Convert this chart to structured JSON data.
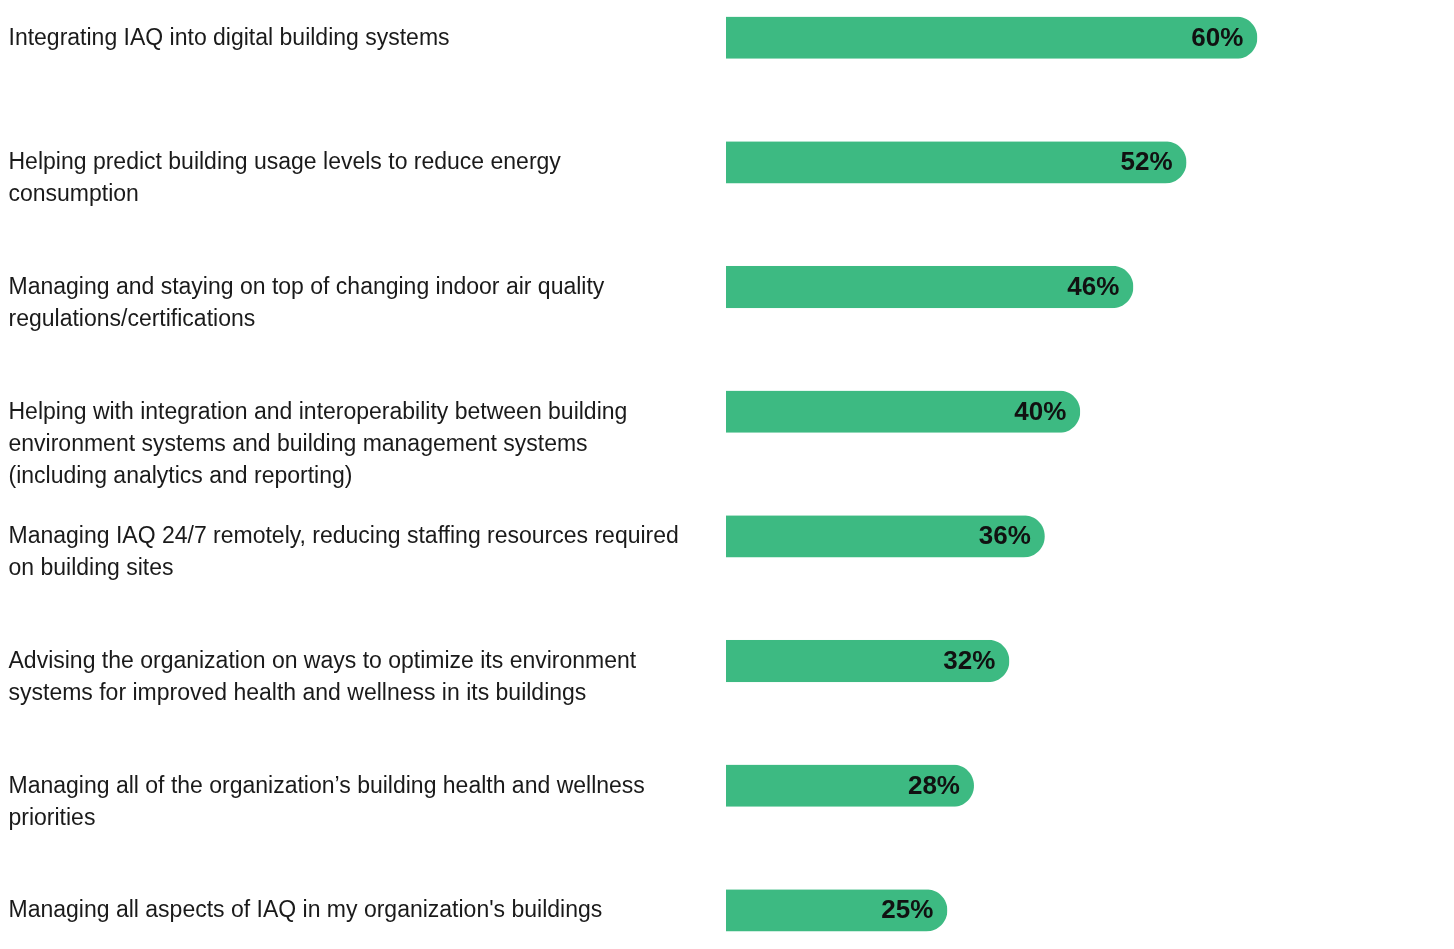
{
  "chart_data": {
    "type": "bar",
    "orientation": "horizontal",
    "categories": [
      "Integrating IAQ into digital building systems",
      "Helping predict building usage levels to reduce energy consumption",
      "Managing and staying on top of changing indoor air quality regulations/certifications",
      "Helping with integration and interoperability between building environment systems and building management systems (including analytics and reporting)",
      "Managing IAQ 24/7 remotely, reducing staffing resources required on building sites",
      "Advising the organization on ways to optimize its environment systems for improved health and wellness in its buildings",
      "Managing all of the organization’s building health and wellness priorities",
      "Managing all aspects of IAQ in my organization's buildings"
    ],
    "values": [
      60,
      52,
      46,
      40,
      36,
      32,
      28,
      25
    ],
    "value_labels": [
      "60%",
      "52%",
      "46%",
      "40%",
      "36%",
      "32%",
      "28%",
      "25%"
    ],
    "color": "#3dba82",
    "grid": false
  }
}
